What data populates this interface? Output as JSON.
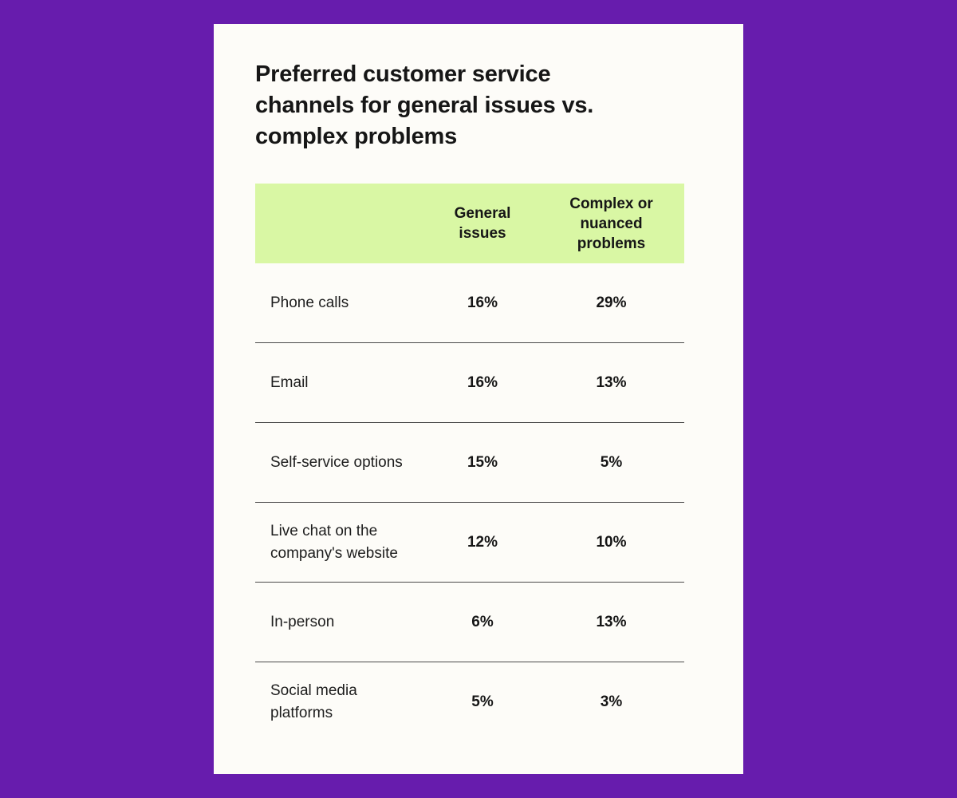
{
  "chart_data": {
    "type": "table",
    "title": "Preferred customer service channels for general issues vs. complex problems",
    "columns": [
      "General issues",
      "Complex or nuanced problems"
    ],
    "rows": [
      {
        "label": "Phone calls",
        "values": [
          "16%",
          "29%"
        ]
      },
      {
        "label": "Email",
        "values": [
          "16%",
          "13%"
        ]
      },
      {
        "label": "Self-service options",
        "values": [
          "15%",
          "5%"
        ]
      },
      {
        "label": "Live chat on the company's website",
        "values": [
          "12%",
          "10%"
        ]
      },
      {
        "label": "In-person",
        "values": [
          "6%",
          "13%"
        ]
      },
      {
        "label": "Social media platforms",
        "values": [
          "5%",
          "3%"
        ]
      }
    ]
  },
  "colors": {
    "background": "#671cad",
    "card": "#fdfcf8",
    "header": "#d9f7a4",
    "text": "#161616",
    "divider": "#4a4a4a"
  }
}
